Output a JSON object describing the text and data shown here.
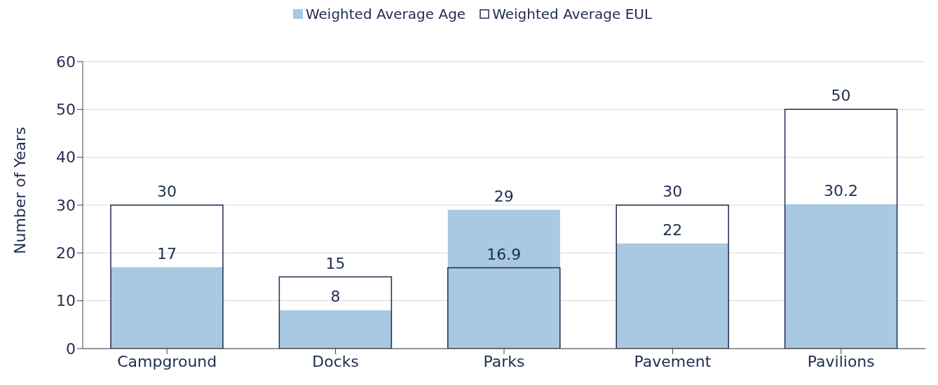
{
  "chart_data": {
    "type": "bar",
    "ylabel": "Number of Years",
    "categories": [
      "Campground",
      "Docks",
      "Parks",
      "Pavement",
      "Pavilions"
    ],
    "series": [
      {
        "name": "Weighted Average Age",
        "color": "#a9c8e1",
        "values": [
          17,
          8,
          29,
          22,
          30.2
        ]
      },
      {
        "name": "Weighted Average EUL",
        "color": "#1f2d4e",
        "values": [
          30,
          15,
          16.9,
          30,
          50
        ]
      }
    ],
    "ylim": [
      0,
      60
    ],
    "yticks": [
      0,
      10,
      20,
      30,
      40,
      50,
      60
    ],
    "grid": "y",
    "legend": "top",
    "data_labels": true
  }
}
